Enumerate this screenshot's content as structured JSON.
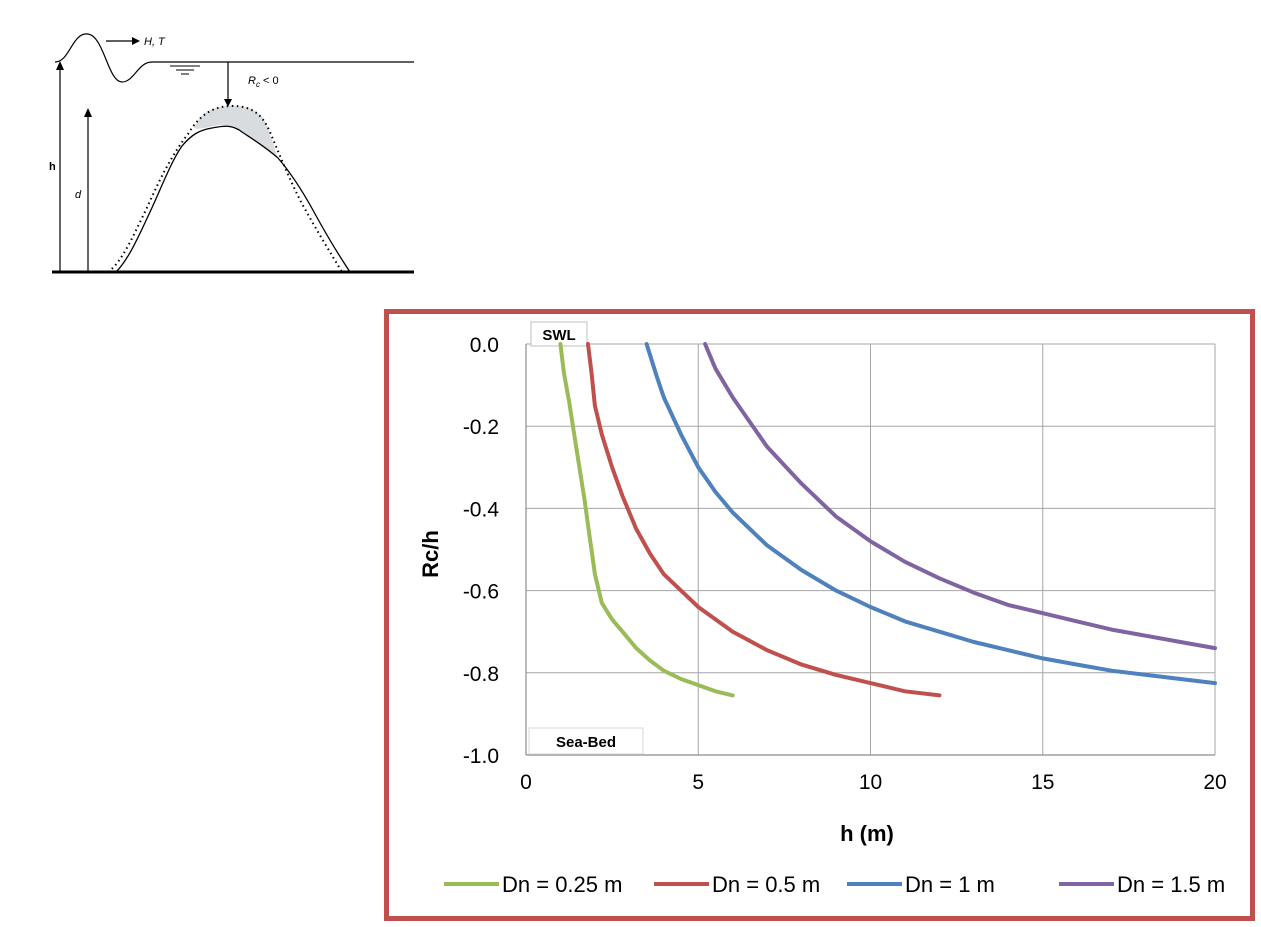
{
  "schematic": {
    "wave_label": "H, T",
    "rc_label": "R",
    "rc_sub": "c",
    "rc_cond": " < 0",
    "h_label": "h",
    "d_label": "d"
  },
  "chart_data": {
    "type": "line",
    "xlabel": "h (m)",
    "ylabel": "Rc/h",
    "xlim": [
      0,
      20
    ],
    "ylim": [
      -1.0,
      0.0
    ],
    "xticks": [
      0,
      5,
      10,
      15,
      20
    ],
    "yticks": [
      0.0,
      -0.2,
      -0.4,
      -0.6,
      -0.8,
      -1.0
    ],
    "ytick_labels": [
      "0.0",
      "-0.2",
      "-0.4",
      "-0.6",
      "-0.8",
      "-1.0"
    ],
    "grid": true,
    "legend_position": "bottom",
    "annotations": [
      {
        "text": "SWL",
        "anchor": "top-left"
      },
      {
        "text": "Sea-Bed",
        "anchor": "bottom-left"
      }
    ],
    "series": [
      {
        "name": "Dn = 0.25 m",
        "color": "#9bbb59",
        "x": [
          1.0,
          1.1,
          1.25,
          1.4,
          1.55,
          1.7,
          1.85,
          2.0,
          2.2,
          2.5,
          2.8,
          3.2,
          3.6,
          4.0,
          4.5,
          5.0,
          5.5,
          6.0
        ],
        "y": [
          0.0,
          -0.07,
          -0.14,
          -0.22,
          -0.3,
          -0.38,
          -0.47,
          -0.56,
          -0.63,
          -0.67,
          -0.7,
          -0.74,
          -0.77,
          -0.795,
          -0.815,
          -0.83,
          -0.845,
          -0.855
        ]
      },
      {
        "name": "Dn = 0.5 m",
        "color": "#c0504d",
        "x": [
          1.8,
          1.9,
          2.0,
          2.2,
          2.5,
          2.8,
          3.2,
          3.6,
          4.0,
          4.5,
          5.0,
          5.5,
          6.0,
          7.0,
          8.0,
          9.0,
          10.0,
          11.0,
          12.0
        ],
        "y": [
          0.0,
          -0.07,
          -0.15,
          -0.22,
          -0.3,
          -0.37,
          -0.45,
          -0.51,
          -0.56,
          -0.6,
          -0.64,
          -0.67,
          -0.7,
          -0.745,
          -0.78,
          -0.805,
          -0.825,
          -0.845,
          -0.855
        ]
      },
      {
        "name": "Dn = 1  m",
        "color": "#4f81bd",
        "x": [
          3.5,
          3.8,
          4.0,
          4.5,
          5.0,
          5.5,
          6.0,
          7.0,
          8.0,
          9.0,
          10.0,
          11.0,
          12.0,
          13.0,
          14.0,
          15.0,
          16.0,
          17.0,
          18.0,
          19.0,
          20.0
        ],
        "y": [
          0.0,
          -0.08,
          -0.13,
          -0.22,
          -0.3,
          -0.36,
          -0.41,
          -0.49,
          -0.55,
          -0.6,
          -0.64,
          -0.675,
          -0.7,
          -0.725,
          -0.745,
          -0.765,
          -0.78,
          -0.795,
          -0.805,
          -0.815,
          -0.825
        ]
      },
      {
        "name": "Dn = 1.5 m",
        "color": "#8064a2",
        "x": [
          5.2,
          5.5,
          6.0,
          6.5,
          7.0,
          8.0,
          9.0,
          10.0,
          11.0,
          12.0,
          13.0,
          14.0,
          15.0,
          16.0,
          17.0,
          18.0,
          19.0,
          20.0
        ],
        "y": [
          0.0,
          -0.06,
          -0.13,
          -0.19,
          -0.25,
          -0.34,
          -0.42,
          -0.48,
          -0.53,
          -0.57,
          -0.605,
          -0.635,
          -0.655,
          -0.675,
          -0.695,
          -0.71,
          -0.725,
          -0.74
        ]
      }
    ]
  }
}
